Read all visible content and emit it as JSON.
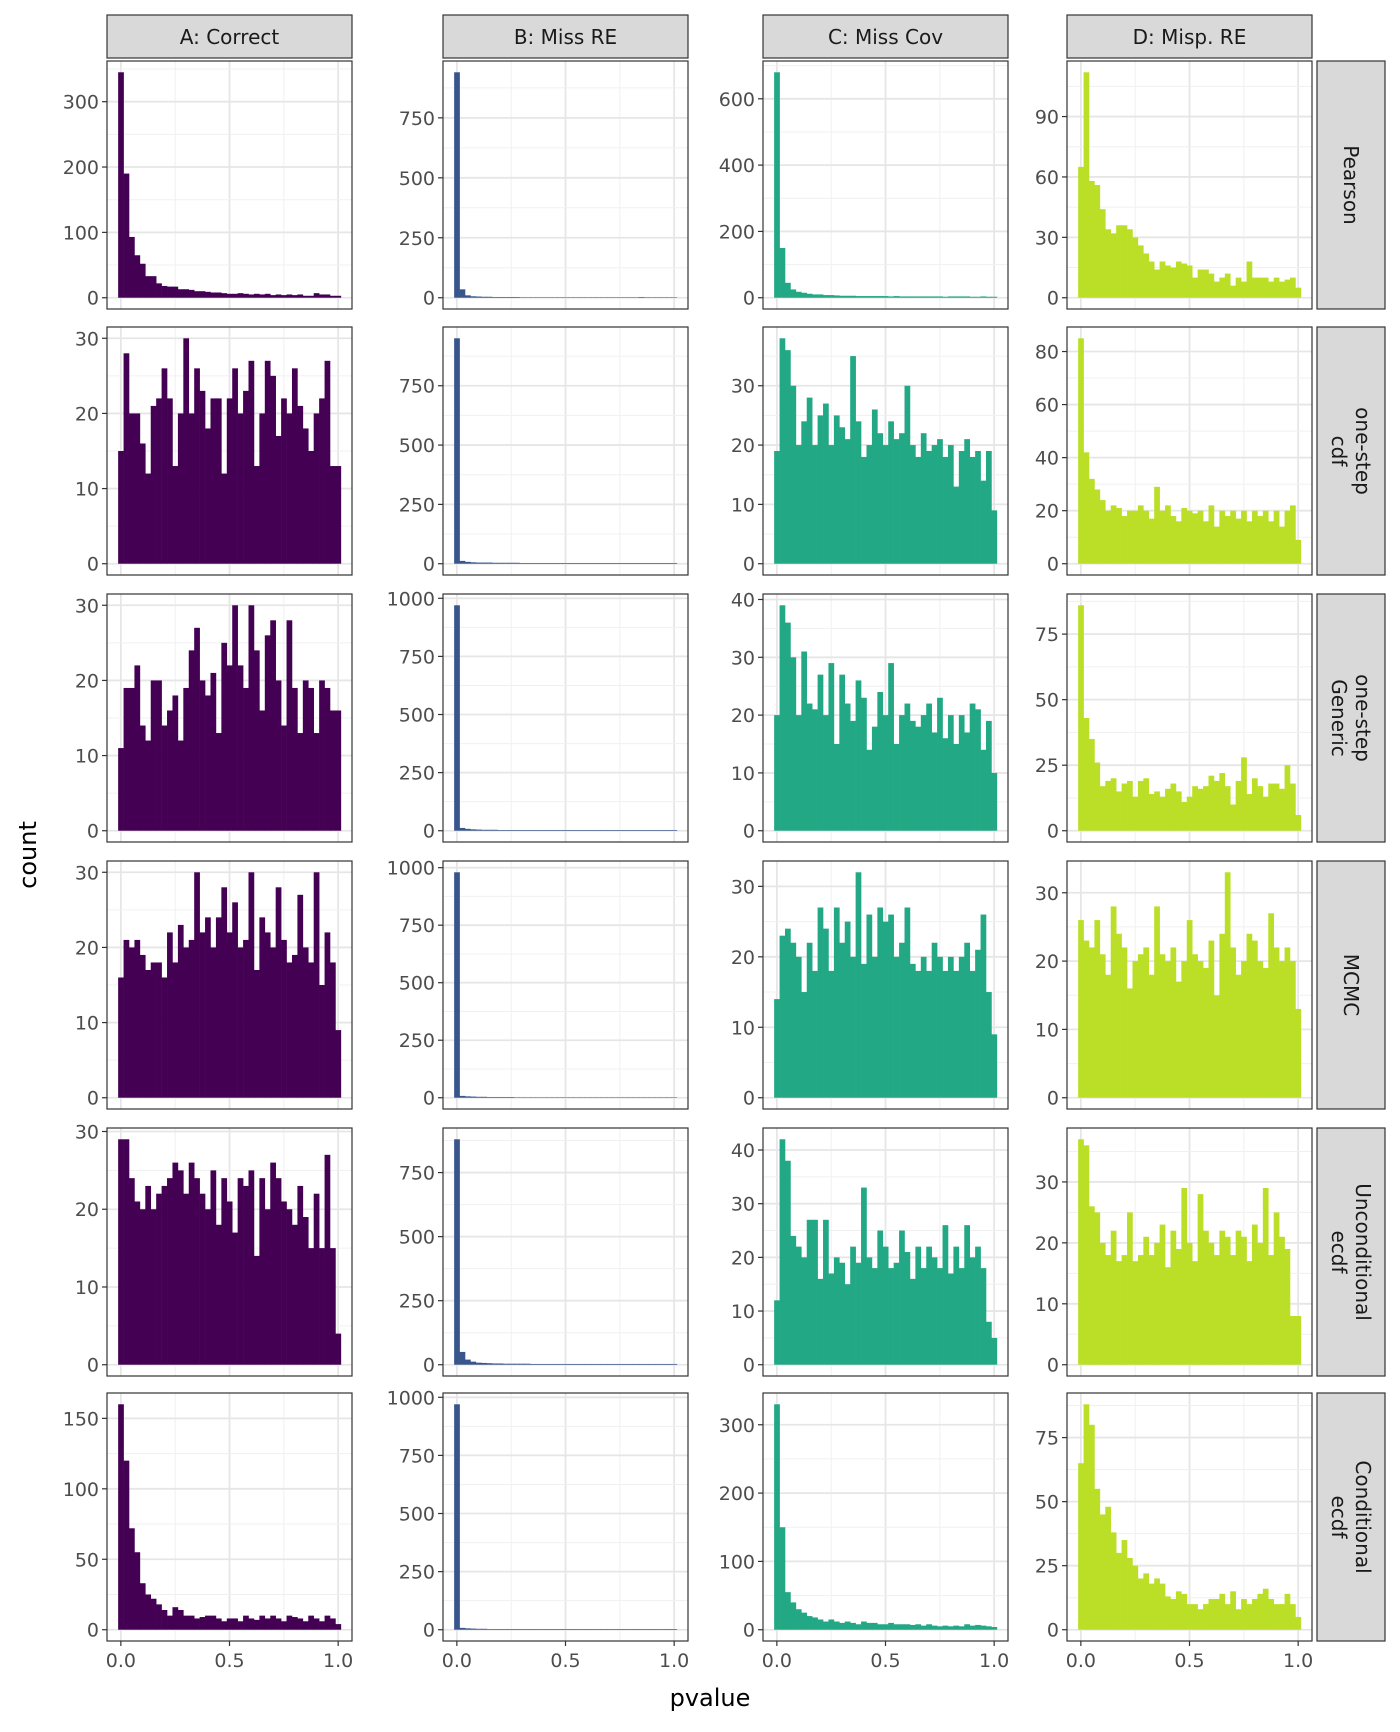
{
  "chart_data": {
    "type": "bar",
    "subtype": "histogram-facet-grid",
    "xlabel": "pvalue",
    "ylabel": "count",
    "xlim": [
      0,
      1
    ],
    "x_ticks": [
      "0.0",
      "0.5",
      "1.0"
    ],
    "x_tick_values": [
      0,
      0.5,
      1
    ],
    "bin_width": 0.025,
    "grid": true,
    "columns": [
      "A: Correct",
      "B: Miss RE",
      "C: Miss Cov",
      "D: Misp. RE"
    ],
    "rows": [
      "Pearson",
      "one-step\ncdf",
      "one-step\nGeneric",
      "MCMC",
      "Unconditional\necdf",
      "Conditional\necdf"
    ],
    "column_colors": [
      "#440154",
      "#39568C",
      "#22A884",
      "#BBDF27"
    ],
    "panels": [
      {
        "row": 0,
        "col": 0,
        "y_ticks": [
          0,
          100,
          200,
          300
        ],
        "values": [
          345,
          190,
          93,
          65,
          52,
          33,
          33,
          22,
          18,
          17,
          17,
          13,
          13,
          12,
          10,
          10,
          9,
          8,
          8,
          7,
          6,
          6,
          7,
          6,
          5,
          6,
          5,
          6,
          4,
          5,
          4,
          5,
          4,
          5,
          3,
          3,
          7,
          5,
          5,
          3,
          3
        ]
      },
      {
        "row": 0,
        "col": 1,
        "y_ticks": [
          0,
          250,
          500,
          750
        ],
        "values": [
          940,
          35,
          10,
          6,
          5,
          4,
          4,
          3,
          3,
          3,
          3,
          3,
          2,
          2,
          2,
          2,
          2,
          2,
          2,
          2,
          2,
          2,
          2,
          2,
          2,
          2,
          2,
          2,
          2,
          2,
          2,
          2,
          2,
          2,
          3,
          2,
          2,
          2,
          2,
          2,
          2
        ]
      },
      {
        "row": 0,
        "col": 2,
        "y_ticks": [
          0,
          200,
          400,
          600
        ],
        "values": [
          680,
          150,
          45,
          25,
          18,
          15,
          12,
          10,
          10,
          8,
          8,
          7,
          6,
          6,
          6,
          5,
          5,
          5,
          5,
          5,
          5,
          4,
          5,
          4,
          4,
          4,
          4,
          4,
          4,
          4,
          4,
          3,
          4,
          4,
          4,
          4,
          3,
          3,
          4,
          3,
          3
        ]
      },
      {
        "row": 0,
        "col": 3,
        "y_ticks": [
          0,
          30,
          60,
          90
        ],
        "values": [
          65,
          112,
          58,
          56,
          44,
          34,
          32,
          36,
          36,
          34,
          30,
          26,
          22,
          18,
          14,
          18,
          16,
          15,
          18,
          17,
          16,
          10,
          14,
          14,
          12,
          8,
          10,
          12,
          6,
          10,
          8,
          18,
          10,
          10,
          10,
          8,
          10,
          8,
          9,
          10,
          5
        ]
      },
      {
        "row": 1,
        "col": 0,
        "y_ticks": [
          0,
          10,
          20,
          30
        ],
        "values": [
          15,
          28,
          20,
          20,
          16,
          12,
          21,
          22,
          26,
          22,
          13,
          20,
          30,
          20,
          26,
          23,
          18,
          22,
          22,
          12,
          22,
          26,
          20,
          23,
          27,
          13,
          20,
          27,
          25,
          17,
          22,
          20,
          26,
          21,
          18,
          15,
          20,
          22,
          27,
          13,
          13
        ]
      },
      {
        "row": 1,
        "col": 1,
        "y_ticks": [
          0,
          250,
          500,
          750
        ],
        "values": [
          950,
          12,
          8,
          6,
          5,
          5,
          5,
          4,
          4,
          4,
          4,
          4,
          3,
          3,
          3,
          3,
          3,
          3,
          3,
          3,
          3,
          3,
          3,
          3,
          3,
          3,
          3,
          3,
          3,
          3,
          3,
          3,
          3,
          3,
          3,
          3,
          3,
          3,
          3,
          3,
          3
        ]
      },
      {
        "row": 1,
        "col": 2,
        "y_ticks": [
          0,
          10,
          20,
          30
        ],
        "values": [
          19,
          38,
          36,
          30,
          20,
          24,
          28,
          20,
          25,
          27,
          20,
          25,
          23,
          21,
          35,
          24,
          18,
          20,
          26,
          22,
          20,
          24,
          21,
          22,
          30,
          20,
          18,
          22,
          19,
          20,
          21,
          18,
          20,
          13,
          19,
          21,
          18,
          19,
          14,
          19,
          9
        ]
      },
      {
        "row": 1,
        "col": 3,
        "y_ticks": [
          0,
          20,
          40,
          60,
          80
        ],
        "values": [
          85,
          42,
          32,
          28,
          24,
          20,
          22,
          21,
          18,
          20,
          20,
          22,
          20,
          17,
          29,
          20,
          22,
          18,
          16,
          21,
          20,
          19,
          20,
          16,
          22,
          14,
          20,
          18,
          20,
          17,
          20,
          16,
          20,
          18,
          20,
          16,
          20,
          14,
          20,
          22,
          9
        ]
      },
      {
        "row": 2,
        "col": 0,
        "y_ticks": [
          0,
          10,
          20,
          30
        ],
        "values": [
          11,
          19,
          19,
          22,
          14,
          12,
          20,
          20,
          14,
          16,
          18,
          12,
          19,
          24,
          27,
          20,
          18,
          21,
          13,
          25,
          22,
          30,
          22,
          19,
          30,
          24,
          16,
          26,
          28,
          20,
          14,
          28,
          19,
          13,
          20,
          19,
          13,
          20,
          19,
          16,
          16
        ]
      },
      {
        "row": 2,
        "col": 1,
        "y_ticks": [
          0,
          250,
          500,
          750,
          1000
        ],
        "values": [
          970,
          12,
          8,
          6,
          5,
          4,
          4,
          4,
          3,
          3,
          3,
          3,
          3,
          3,
          3,
          3,
          3,
          3,
          3,
          3,
          3,
          3,
          3,
          3,
          3,
          3,
          3,
          3,
          3,
          3,
          3,
          3,
          3,
          3,
          3,
          3,
          3,
          3,
          3,
          3,
          3
        ]
      },
      {
        "row": 2,
        "col": 2,
        "y_ticks": [
          0,
          10,
          20,
          30,
          40
        ],
        "values": [
          20,
          39,
          36,
          30,
          20,
          31,
          22,
          21,
          27,
          20,
          29,
          15,
          27,
          22,
          19,
          26,
          23,
          14,
          18,
          24,
          20,
          29,
          15,
          20,
          22,
          19,
          18,
          20,
          22,
          17,
          23,
          16,
          20,
          15,
          20,
          17,
          22,
          21,
          14,
          19,
          10
        ]
      },
      {
        "row": 2,
        "col": 3,
        "y_ticks": [
          0,
          25,
          50,
          75
        ],
        "values": [
          86,
          43,
          35,
          26,
          17,
          19,
          20,
          15,
          18,
          19,
          13,
          19,
          20,
          14,
          15,
          13,
          16,
          18,
          15,
          11,
          13,
          17,
          16,
          17,
          21,
          19,
          22,
          17,
          10,
          19,
          28,
          14,
          20,
          17,
          13,
          18,
          18,
          16,
          25,
          18,
          6
        ]
      },
      {
        "row": 3,
        "col": 0,
        "y_ticks": [
          0,
          10,
          20,
          30
        ],
        "values": [
          16,
          21,
          20,
          21,
          19,
          17,
          18,
          18,
          16,
          22,
          18,
          23,
          20,
          21,
          30,
          22,
          24,
          20,
          24,
          28,
          22,
          26,
          20,
          21,
          30,
          17,
          24,
          22,
          20,
          28,
          21,
          18,
          19,
          27,
          20,
          18,
          30,
          15,
          22,
          18,
          9
        ]
      },
      {
        "row": 3,
        "col": 1,
        "y_ticks": [
          0,
          250,
          500,
          750,
          1000
        ],
        "values": [
          980,
          8,
          6,
          5,
          4,
          4,
          3,
          3,
          3,
          3,
          3,
          2,
          2,
          2,
          2,
          2,
          2,
          2,
          2,
          2,
          2,
          2,
          2,
          2,
          2,
          2,
          2,
          2,
          2,
          2,
          2,
          2,
          2,
          2,
          2,
          2,
          2,
          2,
          2,
          2,
          2
        ]
      },
      {
        "row": 3,
        "col": 2,
        "y_ticks": [
          0,
          10,
          20,
          30
        ],
        "values": [
          14,
          23,
          24,
          22,
          20,
          15,
          22,
          18,
          27,
          24,
          18,
          27,
          22,
          25,
          20,
          32,
          19,
          26,
          20,
          27,
          25,
          26,
          20,
          22,
          27,
          19,
          18,
          20,
          18,
          22,
          20,
          18,
          20,
          18,
          20,
          22,
          18,
          21,
          26,
          15,
          9
        ]
      },
      {
        "row": 3,
        "col": 3,
        "y_ticks": [
          0,
          10,
          20,
          30
        ],
        "values": [
          26,
          23,
          22,
          26,
          21,
          18,
          28,
          24,
          22,
          16,
          20,
          21,
          22,
          18,
          28,
          21,
          20,
          22,
          17,
          20,
          26,
          21,
          20,
          19,
          23,
          15,
          24,
          33,
          22,
          18,
          20,
          24,
          23,
          20,
          19,
          27,
          22,
          20,
          22,
          20,
          13
        ]
      },
      {
        "row": 4,
        "col": 0,
        "y_ticks": [
          0,
          10,
          20,
          30
        ],
        "values": [
          29,
          29,
          24,
          21,
          20,
          23,
          20,
          22,
          23,
          24,
          26,
          25,
          22,
          26,
          24,
          22,
          20,
          25,
          18,
          24,
          21,
          17,
          24,
          23,
          25,
          14,
          24,
          20,
          26,
          24,
          21,
          20,
          18,
          23,
          19,
          15,
          22,
          15,
          27,
          15,
          4
        ]
      },
      {
        "row": 4,
        "col": 1,
        "y_ticks": [
          0,
          250,
          500,
          750
        ],
        "values": [
          880,
          50,
          20,
          12,
          8,
          7,
          6,
          5,
          5,
          4,
          4,
          4,
          4,
          4,
          3,
          3,
          3,
          3,
          3,
          3,
          3,
          3,
          3,
          3,
          3,
          3,
          3,
          3,
          3,
          3,
          3,
          3,
          3,
          3,
          3,
          3,
          3,
          3,
          3,
          3,
          3
        ]
      },
      {
        "row": 4,
        "col": 2,
        "y_ticks": [
          0,
          10,
          20,
          30,
          40
        ],
        "values": [
          12,
          42,
          38,
          24,
          22,
          20,
          27,
          27,
          16,
          27,
          17,
          20,
          19,
          15,
          22,
          19,
          33,
          20,
          18,
          25,
          22,
          18,
          19,
          25,
          21,
          16,
          22,
          18,
          22,
          20,
          18,
          26,
          17,
          22,
          18,
          26,
          20,
          22,
          18,
          8,
          5
        ]
      },
      {
        "row": 4,
        "col": 3,
        "y_ticks": [
          0,
          10,
          20,
          30
        ],
        "values": [
          37,
          36,
          26,
          25,
          20,
          18,
          22,
          17,
          18,
          25,
          17,
          18,
          21,
          18,
          20,
          23,
          16,
          22,
          19,
          29,
          20,
          17,
          28,
          22,
          20,
          18,
          22,
          21,
          18,
          22,
          21,
          17,
          23,
          20,
          29,
          18,
          25,
          21,
          19,
          8,
          8
        ]
      },
      {
        "row": 5,
        "col": 0,
        "y_ticks": [
          0,
          50,
          100,
          150
        ],
        "values": [
          160,
          120,
          72,
          55,
          33,
          25,
          22,
          18,
          14,
          10,
          16,
          14,
          10,
          10,
          8,
          9,
          10,
          10,
          8,
          6,
          8,
          8,
          6,
          10,
          8,
          7,
          10,
          8,
          10,
          8,
          6,
          10,
          9,
          8,
          6,
          10,
          8,
          6,
          10,
          8,
          4
        ]
      },
      {
        "row": 5,
        "col": 1,
        "y_ticks": [
          0,
          250,
          500,
          750,
          1000
        ],
        "values": [
          970,
          8,
          6,
          5,
          4,
          4,
          3,
          3,
          3,
          3,
          3,
          3,
          3,
          3,
          3,
          3,
          3,
          3,
          3,
          3,
          3,
          3,
          3,
          3,
          3,
          3,
          3,
          3,
          3,
          3,
          3,
          3,
          3,
          3,
          3,
          3,
          3,
          3,
          3,
          3,
          3
        ]
      },
      {
        "row": 5,
        "col": 2,
        "y_ticks": [
          0,
          100,
          200,
          300
        ],
        "values": [
          330,
          150,
          55,
          40,
          30,
          25,
          20,
          18,
          15,
          12,
          15,
          12,
          10,
          12,
          10,
          8,
          12,
          10,
          10,
          8,
          8,
          10,
          8,
          8,
          8,
          7,
          8,
          6,
          8,
          6,
          5,
          6,
          5,
          6,
          5,
          8,
          6,
          7,
          6,
          5,
          4
        ]
      },
      {
        "row": 5,
        "col": 3,
        "y_ticks": [
          0,
          25,
          50,
          75
        ],
        "values": [
          65,
          88,
          80,
          55,
          45,
          48,
          38,
          30,
          35,
          28,
          25,
          20,
          22,
          18,
          20,
          18,
          13,
          12,
          15,
          14,
          10,
          10,
          8,
          10,
          12,
          12,
          14,
          10,
          15,
          8,
          12,
          10,
          12,
          14,
          16,
          12,
          10,
          10,
          14,
          10,
          5
        ]
      }
    ]
  }
}
